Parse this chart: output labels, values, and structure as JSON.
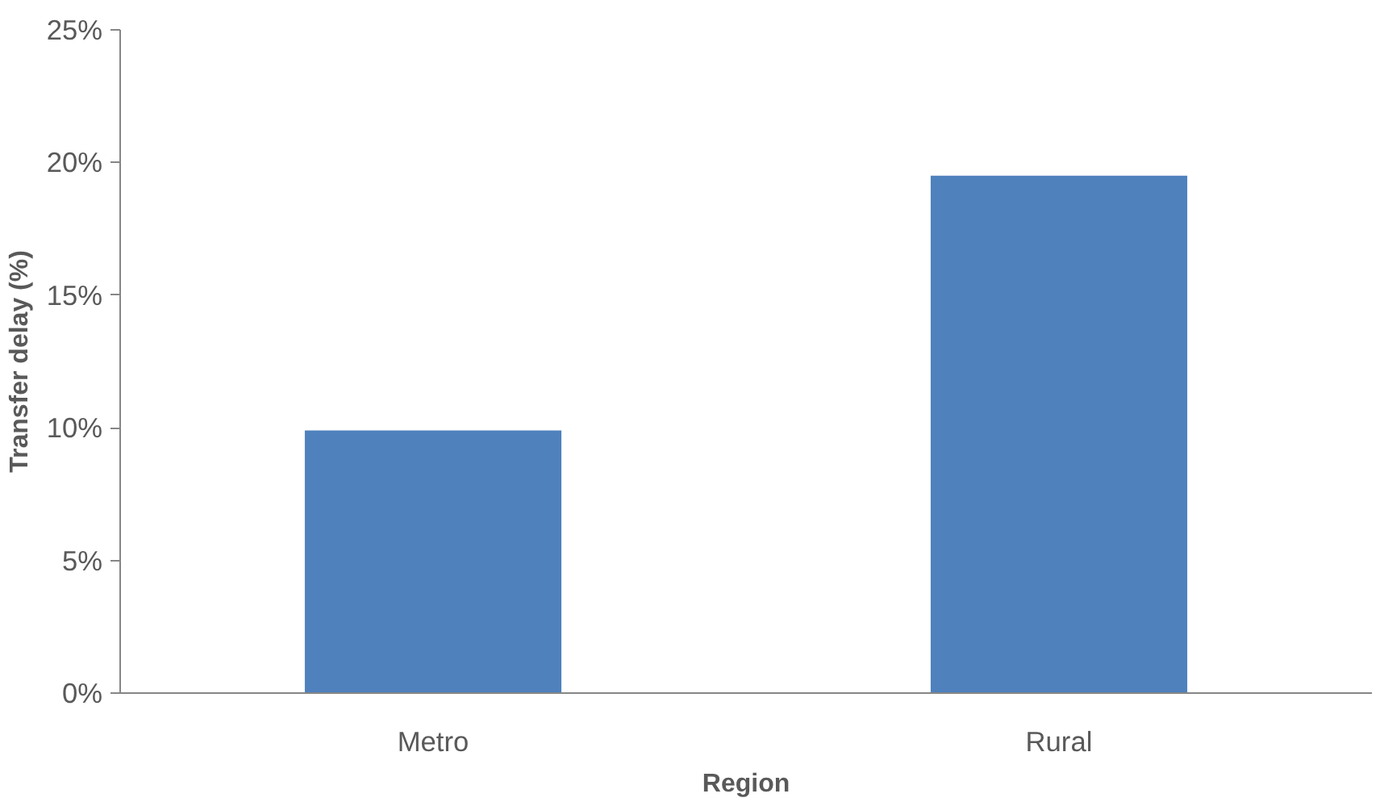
{
  "chart_data": {
    "type": "bar",
    "xlabel": "Region",
    "ylabel": "Transfer delay (%)",
    "categories": [
      "Metro",
      "Rural"
    ],
    "values": [
      9.9,
      19.5
    ],
    "color": "#4f81bd",
    "ylim": [
      0,
      25
    ],
    "yticks": [
      {
        "value": 0,
        "label": "0%"
      },
      {
        "value": 5,
        "label": "5%"
      },
      {
        "value": 10,
        "label": "10%"
      },
      {
        "value": 15,
        "label": "15%"
      },
      {
        "value": 20,
        "label": "20%"
      },
      {
        "value": 25,
        "label": "25%"
      }
    ],
    "grid": false
  }
}
